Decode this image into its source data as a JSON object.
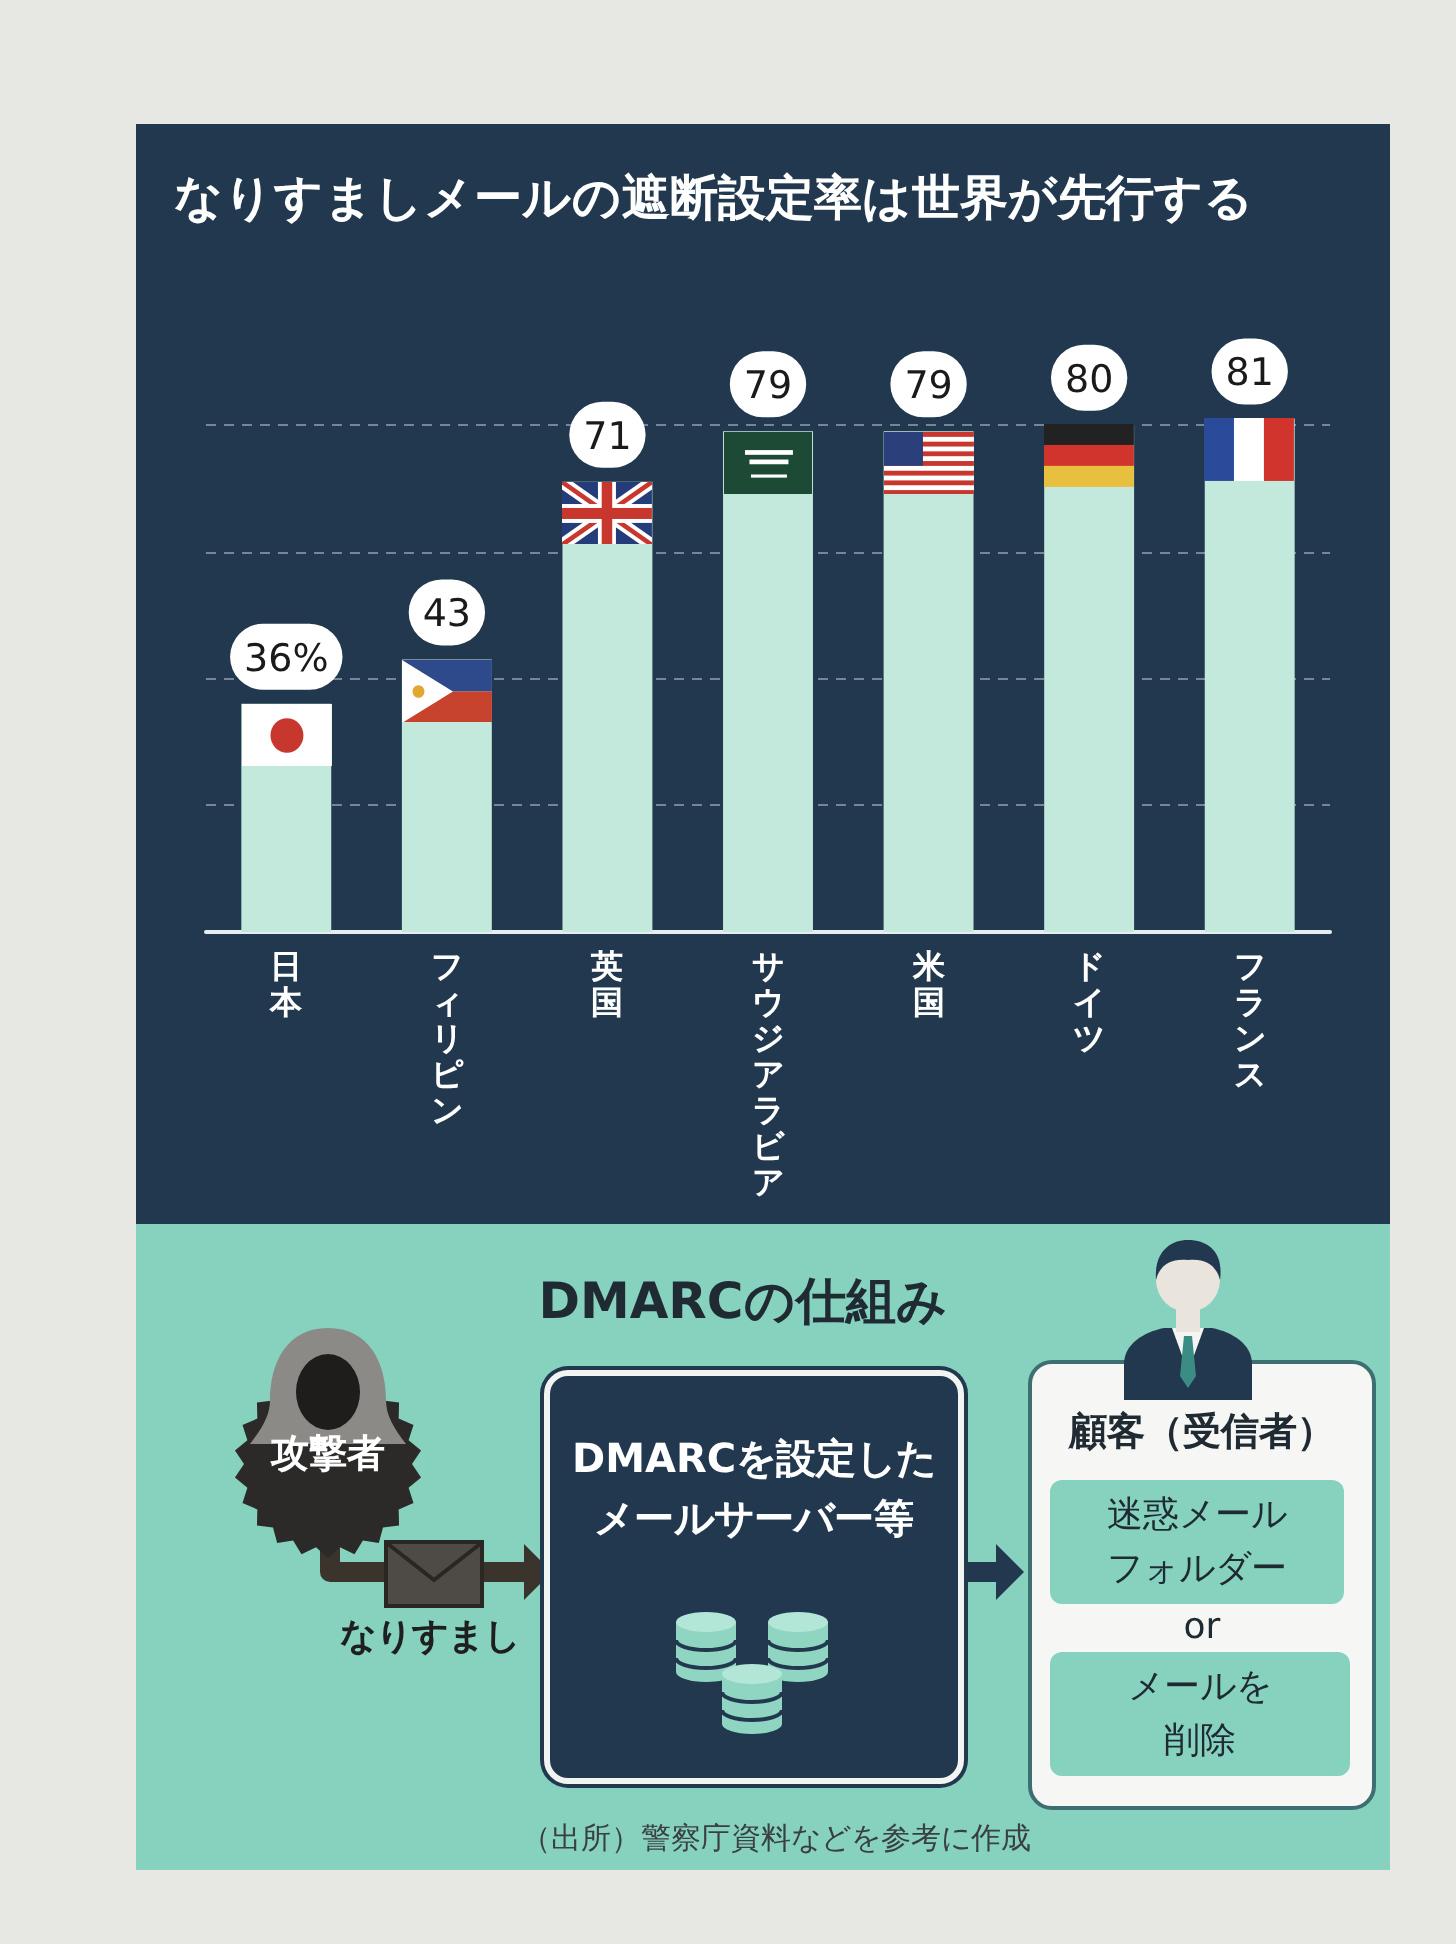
{
  "chart_data": [
    {
      "type": "bar",
      "title": "なりすましメールの遮断設定率は世界が先行する",
      "categories": [
        "日本",
        "フィリピン",
        "英国",
        "サウジアラビア",
        "米国",
        "ドイツ",
        "フランス"
      ],
      "values": [
        36,
        43,
        71,
        79,
        79,
        80,
        81
      ],
      "value_labels": [
        "36%",
        "43",
        "71",
        "79",
        "79",
        "80",
        "81"
      ],
      "color": "#c3e9dc",
      "yticks": [
        {
          "value": 20,
          "label": null
        },
        {
          "value": 40,
          "label": null
        },
        {
          "value": 60,
          "label": null
        },
        {
          "value": 80,
          "label": null
        }
      ],
      "grid": "y",
      "tick_labels": "x"
    },
    {
      "type": "other",
      "title": "DMARCの仕組み",
      "annotations": [
        "攻撃者",
        "なりすまし",
        "DMARCを設定したメールサーバー等",
        "顧客（受信者）",
        "迷惑メールフォルダー",
        "or",
        "メールを削除",
        "（出所）警察庁資料などを参考に作成"
      ]
    }
  ]
}
